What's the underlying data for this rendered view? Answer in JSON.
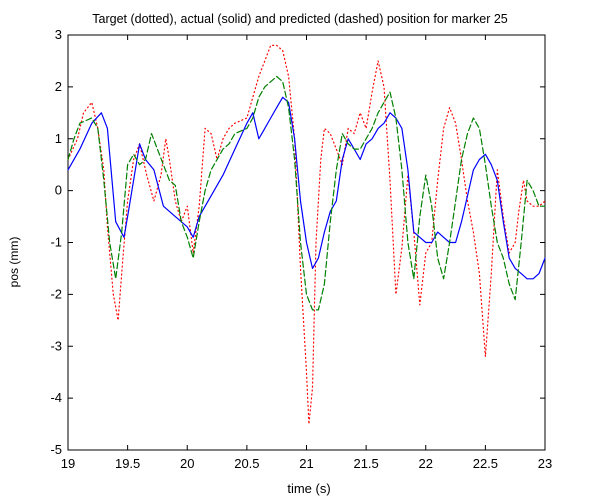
{
  "chart_data": {
    "type": "line",
    "title": "Target (dotted), actual (solid) and predicted (dashed) position for marker 25",
    "xlabel": "time (s)",
    "ylabel": "pos (mm)",
    "xlim": [
      19,
      23
    ],
    "ylim": [
      -5,
      3
    ],
    "xticks": [
      "19",
      "19.5",
      "20",
      "20.5",
      "21",
      "21.5",
      "22",
      "22.5",
      "23"
    ],
    "yticks": [
      "3",
      "2",
      "1",
      "0",
      "-1",
      "-2",
      "-3",
      "-4",
      "-5"
    ],
    "grid": false,
    "series": [
      {
        "style": "dotted",
        "color": "#ff0000",
        "x": [
          19.0,
          19.08,
          19.13,
          19.2,
          19.25,
          19.3,
          19.33,
          19.38,
          19.42,
          19.46,
          19.5,
          19.55,
          19.6,
          19.66,
          19.72,
          19.78,
          19.82,
          19.85,
          19.9,
          19.95,
          20.0,
          20.05,
          20.1,
          20.15,
          20.2,
          20.25,
          20.3,
          20.35,
          20.4,
          20.5,
          20.55,
          20.6,
          20.65,
          20.7,
          20.75,
          20.8,
          20.85,
          20.9,
          20.95,
          21.0,
          21.02,
          21.05,
          21.08,
          21.12,
          21.15,
          21.2,
          21.25,
          21.3,
          21.35,
          21.4,
          21.45,
          21.5,
          21.55,
          21.6,
          21.65,
          21.7,
          21.75,
          21.8,
          21.85,
          21.9,
          21.95,
          22.0,
          22.05,
          22.1,
          22.15,
          22.2,
          22.25,
          22.3,
          22.35,
          22.4,
          22.45,
          22.5,
          22.55,
          22.6,
          22.65,
          22.7,
          22.75,
          22.78,
          22.82,
          22.85,
          22.9,
          22.95,
          23.0
        ],
        "y": [
          0.6,
          1.0,
          1.5,
          1.7,
          1.2,
          0.4,
          -0.7,
          -2.0,
          -2.5,
          -1.3,
          -0.2,
          0.6,
          0.9,
          0.3,
          -0.2,
          0.3,
          1.0,
          0.6,
          -0.2,
          -0.6,
          -0.3,
          -1.2,
          -0.3,
          1.2,
          1.1,
          0.6,
          1.0,
          1.2,
          1.3,
          1.4,
          1.8,
          2.2,
          2.5,
          2.8,
          2.8,
          2.7,
          2.2,
          1.0,
          -1.5,
          -3.5,
          -4.5,
          -3.8,
          -1.0,
          0.6,
          1.2,
          1.1,
          0.8,
          0.5,
          1.2,
          1.1,
          1.5,
          1.2,
          1.9,
          2.5,
          2.0,
          0.2,
          -2.0,
          -1.1,
          0.3,
          -0.8,
          -2.2,
          -1.2,
          -1.0,
          0.2,
          1.2,
          1.6,
          1.3,
          0.6,
          -0.2,
          -0.8,
          -1.6,
          -3.2,
          -1.6,
          0.4,
          -0.5,
          -1.2,
          -1.0,
          -0.4,
          0.2,
          -0.2,
          -0.3,
          -0.3,
          -0.2
        ]
      },
      {
        "style": "solid",
        "color": "#0000ff",
        "x": [
          19.0,
          19.1,
          19.2,
          19.28,
          19.33,
          19.4,
          19.47,
          19.5,
          19.55,
          19.6,
          19.65,
          19.72,
          19.8,
          19.9,
          20.0,
          20.05,
          20.1,
          20.2,
          20.3,
          20.4,
          20.5,
          20.55,
          20.6,
          20.65,
          20.7,
          20.75,
          20.8,
          20.85,
          20.9,
          20.95,
          21.0,
          21.05,
          21.1,
          21.15,
          21.2,
          21.25,
          21.3,
          21.35,
          21.4,
          21.45,
          21.5,
          21.55,
          21.6,
          21.65,
          21.7,
          21.75,
          21.8,
          21.85,
          21.9,
          21.95,
          22.0,
          22.05,
          22.1,
          22.15,
          22.2,
          22.25,
          22.3,
          22.35,
          22.4,
          22.45,
          22.5,
          22.55,
          22.6,
          22.65,
          22.7,
          22.75,
          22.8,
          22.85,
          22.9,
          22.95,
          23.0
        ],
        "y": [
          0.4,
          0.8,
          1.3,
          1.5,
          1.2,
          -0.6,
          -0.9,
          -0.5,
          0.2,
          0.9,
          0.6,
          0.4,
          -0.3,
          -0.5,
          -0.7,
          -0.9,
          -0.5,
          -0.1,
          0.3,
          0.8,
          1.3,
          1.5,
          1.0,
          1.2,
          1.4,
          1.6,
          1.8,
          1.7,
          1.0,
          -0.2,
          -1.0,
          -1.5,
          -1.3,
          -0.8,
          -0.4,
          -0.2,
          0.6,
          1.0,
          0.8,
          0.6,
          0.9,
          1.0,
          1.2,
          1.3,
          1.5,
          1.4,
          1.2,
          0.4,
          -0.8,
          -0.9,
          -1.0,
          -1.0,
          -0.8,
          -0.9,
          -1.0,
          -1.0,
          -0.6,
          -0.1,
          0.4,
          0.6,
          0.7,
          0.5,
          0.2,
          -0.6,
          -1.3,
          -1.5,
          -1.6,
          -1.7,
          -1.7,
          -1.6,
          -1.3
        ]
      },
      {
        "style": "dashed",
        "color": "#008000",
        "x": [
          19.0,
          19.05,
          19.1,
          19.2,
          19.25,
          19.3,
          19.35,
          19.4,
          19.45,
          19.5,
          19.55,
          19.6,
          19.65,
          19.7,
          19.75,
          19.8,
          19.85,
          19.9,
          19.95,
          20.0,
          20.05,
          20.1,
          20.15,
          20.2,
          20.25,
          20.3,
          20.35,
          20.4,
          20.5,
          20.55,
          20.6,
          20.65,
          20.7,
          20.75,
          20.8,
          20.85,
          20.9,
          20.95,
          21.0,
          21.05,
          21.1,
          21.15,
          21.2,
          21.25,
          21.3,
          21.35,
          21.4,
          21.45,
          21.5,
          21.55,
          21.6,
          21.65,
          21.7,
          21.75,
          21.8,
          21.85,
          21.9,
          21.95,
          22.0,
          22.05,
          22.1,
          22.15,
          22.2,
          22.25,
          22.3,
          22.35,
          22.4,
          22.45,
          22.5,
          22.55,
          22.6,
          22.65,
          22.7,
          22.75,
          22.8,
          22.85,
          22.9,
          22.95,
          23.0
        ],
        "y": [
          0.6,
          1.0,
          1.3,
          1.4,
          1.2,
          0.2,
          -1.0,
          -1.7,
          -0.8,
          0.5,
          0.7,
          0.5,
          0.6,
          1.1,
          0.8,
          0.5,
          0.2,
          0.1,
          -0.6,
          -0.9,
          -1.3,
          -0.6,
          0.0,
          0.4,
          0.6,
          0.8,
          0.9,
          1.1,
          1.2,
          1.4,
          1.8,
          2.0,
          2.1,
          2.2,
          2.1,
          1.6,
          0.6,
          -1.0,
          -2.0,
          -2.3,
          -2.3,
          -1.8,
          -0.6,
          0.4,
          1.1,
          0.9,
          0.8,
          0.8,
          1.0,
          1.2,
          1.5,
          1.7,
          1.9,
          1.4,
          0.4,
          -1.0,
          -1.7,
          -0.5,
          0.3,
          -0.3,
          -1.3,
          -1.7,
          -1.0,
          -0.2,
          0.6,
          1.1,
          1.4,
          1.2,
          0.5,
          -0.3,
          -1.0,
          -1.3,
          -1.8,
          -2.1,
          -1.0,
          0.2,
          0.0,
          -0.3,
          -0.3
        ]
      }
    ]
  }
}
